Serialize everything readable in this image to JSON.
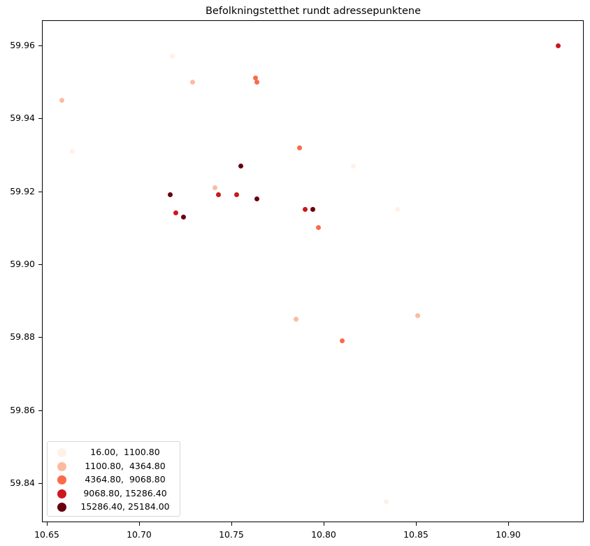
{
  "chart_data": {
    "type": "scatter",
    "title": "Befolkningstetthet rundt adressepunktene",
    "xlabel": "",
    "ylabel": "",
    "xlim": [
      10.6475,
      10.9405
    ],
    "ylim": [
      59.8292,
      59.9668
    ],
    "grid": false,
    "legend_position": "lower left",
    "x_ticks": [
      "10.65",
      "10.70",
      "10.75",
      "10.80",
      "10.85",
      "10.90"
    ],
    "y_ticks": [
      "59.84",
      "59.86",
      "59.88",
      "59.90",
      "59.92",
      "59.94",
      "59.96"
    ],
    "legend": [
      {
        "label": "16.00,  1100.80",
        "color": "#fff0e9"
      },
      {
        "label": "1100.80,  4364.80",
        "color": "#fcbba1"
      },
      {
        "label": "4364.80,  9068.80",
        "color": "#fb6a4a"
      },
      {
        "label": "9068.80, 15286.40",
        "color": "#cb181d"
      },
      {
        "label": "15286.40, 25184.00",
        "color": "#67000d"
      }
    ],
    "points": [
      {
        "x": 10.718,
        "y": 59.957,
        "class": 0
      },
      {
        "x": 10.664,
        "y": 59.931,
        "class": 0
      },
      {
        "x": 10.816,
        "y": 59.927,
        "class": 0
      },
      {
        "x": 10.84,
        "y": 59.915,
        "class": 0
      },
      {
        "x": 10.834,
        "y": 59.835,
        "class": 0
      },
      {
        "x": 10.658,
        "y": 59.945,
        "class": 1
      },
      {
        "x": 10.729,
        "y": 59.95,
        "class": 1
      },
      {
        "x": 10.741,
        "y": 59.921,
        "class": 1
      },
      {
        "x": 10.785,
        "y": 59.885,
        "class": 1
      },
      {
        "x": 10.851,
        "y": 59.886,
        "class": 1
      },
      {
        "x": 10.763,
        "y": 59.951,
        "class": 2
      },
      {
        "x": 10.764,
        "y": 59.95,
        "class": 2
      },
      {
        "x": 10.787,
        "y": 59.932,
        "class": 2
      },
      {
        "x": 10.797,
        "y": 59.91,
        "class": 2
      },
      {
        "x": 10.81,
        "y": 59.879,
        "class": 2
      },
      {
        "x": 10.927,
        "y": 59.96,
        "class": 3
      },
      {
        "x": 10.72,
        "y": 59.914,
        "class": 3
      },
      {
        "x": 10.743,
        "y": 59.919,
        "class": 3
      },
      {
        "x": 10.753,
        "y": 59.919,
        "class": 3
      },
      {
        "x": 10.79,
        "y": 59.915,
        "class": 3
      },
      {
        "x": 10.717,
        "y": 59.919,
        "class": 4
      },
      {
        "x": 10.724,
        "y": 59.913,
        "class": 4
      },
      {
        "x": 10.755,
        "y": 59.927,
        "class": 4
      },
      {
        "x": 10.764,
        "y": 59.918,
        "class": 4
      },
      {
        "x": 10.794,
        "y": 59.915,
        "class": 4
      }
    ]
  }
}
